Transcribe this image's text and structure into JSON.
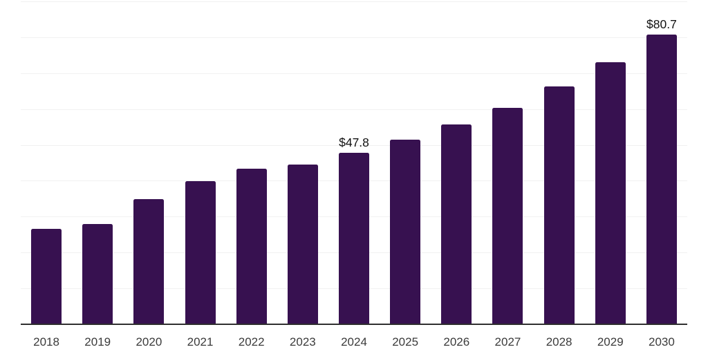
{
  "chart_data": {
    "type": "bar",
    "title": "",
    "xlabel": "",
    "ylabel": "",
    "categories": [
      "2018",
      "2019",
      "2020",
      "2021",
      "2022",
      "2023",
      "2024",
      "2025",
      "2026",
      "2027",
      "2028",
      "2029",
      "2030"
    ],
    "values": [
      26.6,
      27.9,
      34.8,
      39.9,
      43.4,
      44.5,
      47.8,
      51.5,
      55.6,
      60.4,
      66.2,
      73.0,
      80.7
    ],
    "annotations": [
      {
        "category": "2024",
        "label": "$47.8"
      },
      {
        "category": "2030",
        "label": "$80.7"
      }
    ],
    "ylim": [
      0,
      90
    ],
    "gridline_step": 10,
    "grid": "horizontal",
    "legend": "none",
    "y_axis_labels_visible": false,
    "colors": {
      "bar": "#371150",
      "gridline": "#f1f1f1",
      "axis": "#2f2f2f",
      "tick_label": "#3b3b3b",
      "annotation": "#111111",
      "background": "#ffffff"
    }
  }
}
